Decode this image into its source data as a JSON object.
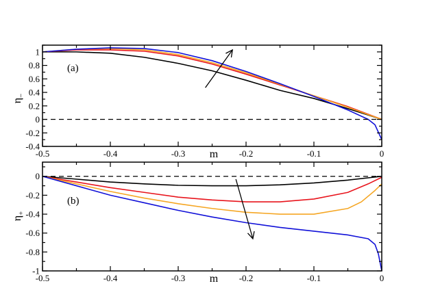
{
  "chart_data": [
    {
      "type": "line",
      "panel_label": "(a)",
      "xlabel": "m",
      "ylabel": "η",
      "ylabel_subscript": "−",
      "xlim": [
        -0.5,
        0
      ],
      "ylim": [
        -0.4,
        1.1
      ],
      "x_ticks": [
        -0.5,
        -0.4,
        -0.3,
        -0.2,
        -0.1,
        0
      ],
      "x_tick_labels": [
        "-0.5",
        "-0.4",
        "-0.3",
        "-0.2",
        "-0.1",
        "0"
      ],
      "y_ticks": [
        -0.4,
        -0.2,
        0,
        0.2,
        0.4,
        0.6,
        0.8,
        1
      ],
      "y_tick_labels": [
        "-0.4",
        "-0.2",
        "0",
        "0.2",
        "0.4",
        "0.6",
        "0.8",
        "1"
      ],
      "reference_line": {
        "y": 0,
        "style": "dashed"
      },
      "grid": false,
      "arrow": {
        "from": [
          -0.26,
          0.47
        ],
        "to": [
          -0.22,
          1.03
        ]
      },
      "series": [
        {
          "color": "#000000",
          "x": [
            -0.5,
            -0.45,
            -0.4,
            -0.35,
            -0.3,
            -0.25,
            -0.2,
            -0.15,
            -0.1,
            -0.05,
            0
          ],
          "y": [
            1.0,
            1.0,
            0.98,
            0.92,
            0.83,
            0.72,
            0.58,
            0.43,
            0.31,
            0.16,
            0.0
          ]
        },
        {
          "color": "#e8141c",
          "x": [
            -0.5,
            -0.45,
            -0.4,
            -0.35,
            -0.3,
            -0.25,
            -0.2,
            -0.15,
            -0.1,
            -0.05,
            0
          ],
          "y": [
            1.0,
            1.03,
            1.03,
            1.01,
            0.94,
            0.82,
            0.67,
            0.51,
            0.35,
            0.19,
            0.0
          ]
        },
        {
          "color": "#f5a623",
          "x": [
            -0.5,
            -0.45,
            -0.4,
            -0.35,
            -0.3,
            -0.25,
            -0.2,
            -0.15,
            -0.1,
            -0.05,
            -0.02,
            0
          ],
          "y": [
            1.0,
            1.04,
            1.05,
            1.03,
            0.96,
            0.84,
            0.69,
            0.52,
            0.35,
            0.18,
            0.07,
            0.0
          ]
        },
        {
          "color": "#1010d8",
          "x": [
            -0.5,
            -0.45,
            -0.4,
            -0.35,
            -0.3,
            -0.25,
            -0.2,
            -0.15,
            -0.1,
            -0.05,
            -0.02,
            -0.01,
            0
          ],
          "y": [
            1.0,
            1.04,
            1.06,
            1.05,
            0.99,
            0.87,
            0.71,
            0.53,
            0.34,
            0.14,
            0.0,
            -0.08,
            -0.3
          ]
        }
      ]
    },
    {
      "type": "line",
      "panel_label": "(b)",
      "xlabel": "m",
      "ylabel": "η",
      "ylabel_subscript": "+",
      "xlim": [
        -0.5,
        0
      ],
      "ylim": [
        -1,
        0.15
      ],
      "x_ticks": [
        -0.5,
        -0.4,
        -0.3,
        -0.2,
        -0.1,
        0
      ],
      "x_tick_labels": [
        "-0.5",
        "-0.4",
        "-0.3",
        "-0.2",
        "-0.1",
        "0"
      ],
      "y_ticks": [
        -1,
        -0.8,
        -0.6,
        -0.4,
        -0.2,
        0
      ],
      "y_tick_labels": [
        "-1",
        "-0.8",
        "-0.6",
        "-0.4",
        "-0.2",
        "0"
      ],
      "reference_line": {
        "y": 0,
        "style": "dashed"
      },
      "grid": false,
      "arrow": {
        "from": [
          -0.215,
          -0.03
        ],
        "to": [
          -0.19,
          -0.66
        ]
      },
      "series": [
        {
          "color": "#000000",
          "x": [
            -0.5,
            -0.45,
            -0.4,
            -0.35,
            -0.3,
            -0.25,
            -0.2,
            -0.15,
            -0.1,
            -0.05,
            0
          ],
          "y": [
            0.0,
            -0.03,
            -0.06,
            -0.08,
            -0.095,
            -0.1,
            -0.1,
            -0.09,
            -0.07,
            -0.04,
            0.0
          ]
        },
        {
          "color": "#e8141c",
          "x": [
            -0.5,
            -0.45,
            -0.4,
            -0.35,
            -0.3,
            -0.25,
            -0.2,
            -0.15,
            -0.1,
            -0.05,
            -0.02,
            0
          ],
          "y": [
            0.0,
            -0.06,
            -0.12,
            -0.17,
            -0.22,
            -0.25,
            -0.27,
            -0.27,
            -0.24,
            -0.17,
            -0.08,
            -0.01
          ]
        },
        {
          "color": "#f5a623",
          "x": [
            -0.5,
            -0.45,
            -0.4,
            -0.35,
            -0.3,
            -0.25,
            -0.2,
            -0.15,
            -0.1,
            -0.05,
            -0.03,
            -0.01,
            0
          ],
          "y": [
            0.0,
            -0.08,
            -0.16,
            -0.23,
            -0.29,
            -0.34,
            -0.38,
            -0.4,
            -0.4,
            -0.34,
            -0.27,
            -0.15,
            -0.08
          ]
        },
        {
          "color": "#1010d8",
          "x": [
            -0.5,
            -0.45,
            -0.4,
            -0.35,
            -0.3,
            -0.25,
            -0.2,
            -0.15,
            -0.1,
            -0.05,
            -0.02,
            -0.01,
            -0.005,
            0
          ],
          "y": [
            0.0,
            -0.1,
            -0.2,
            -0.28,
            -0.36,
            -0.43,
            -0.49,
            -0.54,
            -0.58,
            -0.62,
            -0.66,
            -0.72,
            -0.82,
            -1.0
          ]
        }
      ]
    }
  ]
}
